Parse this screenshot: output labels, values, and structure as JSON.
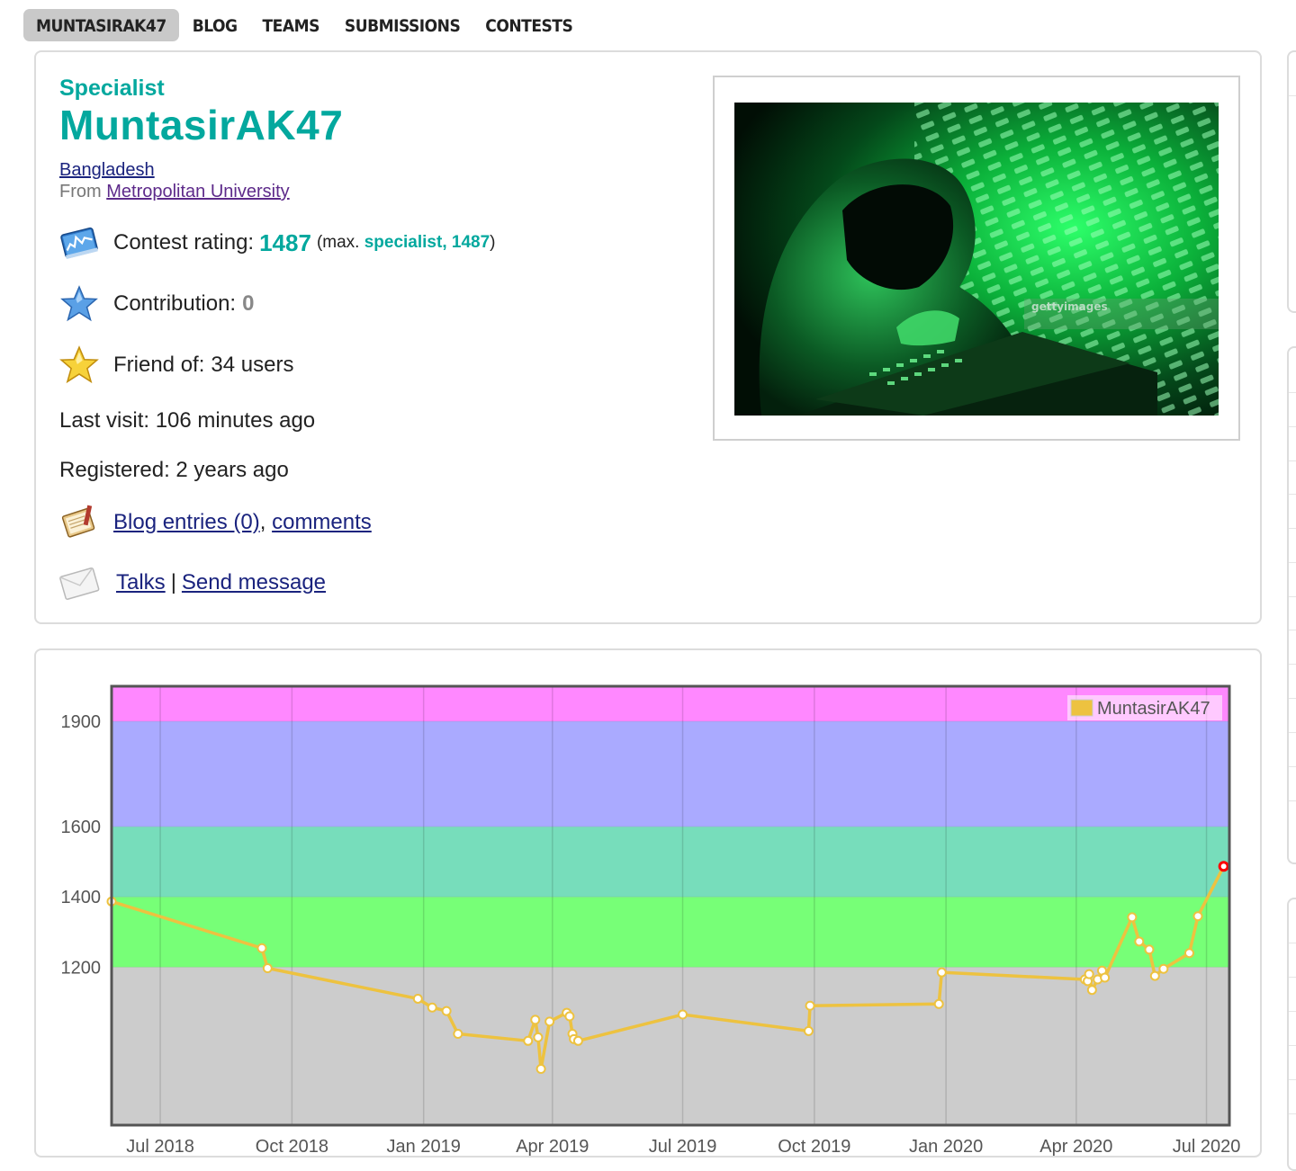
{
  "nav": {
    "tabs": [
      {
        "label": "MUNTASIRAK47",
        "active": true
      },
      {
        "label": "BLOG",
        "active": false
      },
      {
        "label": "TEAMS",
        "active": false
      },
      {
        "label": "SUBMISSIONS",
        "active": false
      },
      {
        "label": "CONTESTS",
        "active": false
      }
    ]
  },
  "profile": {
    "rank": "Specialist",
    "handle": "MuntasirAK47",
    "country": "Bangladesh",
    "from_label": "From",
    "organization": "Metropolitan University",
    "contest_rating_label": "Contest rating:",
    "contest_rating": "1487",
    "max_open": "(max.",
    "max_rank": "specialist,",
    "max_rating": "1487",
    "max_close": ")",
    "contribution_label": "Contribution:",
    "contribution": "0",
    "friend_label": "Friend of:",
    "friend_value": "34 users",
    "last_visit": "Last visit: 106 minutes ago",
    "registered": "Registered: 2 years ago",
    "blog_entries": "Blog entries (0)",
    "comments": "comments",
    "talks": "Talks",
    "separator": "|",
    "send_message": "Send message",
    "photo_watermark": "gettyimages",
    "colors": {
      "rank": "#03a89e",
      "link": "#1a237e"
    }
  },
  "chart_data": {
    "type": "line",
    "series": [
      {
        "name": "MuntasirAK47",
        "color": "#edc240",
        "points": [
          [
            "2018-05-28",
            1387
          ],
          [
            "2018-09-10",
            1254
          ],
          [
            "2018-09-14",
            1197
          ],
          [
            "2018-12-28",
            1110
          ],
          [
            "2019-01-07",
            1085
          ],
          [
            "2019-01-17",
            1075
          ],
          [
            "2019-01-25",
            1010
          ],
          [
            "2019-03-15",
            990
          ],
          [
            "2019-03-20",
            1050
          ],
          [
            "2019-03-22",
            1000
          ],
          [
            "2019-03-24",
            910
          ],
          [
            "2019-03-30",
            1045
          ],
          [
            "2019-04-11",
            1070
          ],
          [
            "2019-04-13",
            1060
          ],
          [
            "2019-04-15",
            1010
          ],
          [
            "2019-04-16",
            995
          ],
          [
            "2019-04-19",
            990
          ],
          [
            "2019-07-01",
            1065
          ],
          [
            "2019-09-27",
            1018
          ],
          [
            "2019-09-28",
            1090
          ],
          [
            "2019-12-27",
            1095
          ],
          [
            "2019-12-29",
            1185
          ],
          [
            "2020-04-07",
            1165
          ],
          [
            "2020-04-09",
            1160
          ],
          [
            "2020-04-10",
            1180
          ],
          [
            "2020-04-12",
            1135
          ],
          [
            "2020-04-16",
            1165
          ],
          [
            "2020-04-19",
            1190
          ],
          [
            "2020-04-21",
            1170
          ],
          [
            "2020-05-10",
            1342
          ],
          [
            "2020-05-15",
            1273
          ],
          [
            "2020-05-22",
            1250
          ],
          [
            "2020-05-26",
            1175
          ],
          [
            "2020-06-01",
            1195
          ],
          [
            "2020-06-19",
            1240
          ],
          [
            "2020-06-25",
            1345
          ],
          [
            "2020-07-13",
            1487
          ]
        ]
      }
    ],
    "x_ticks": [
      "Jul 2018",
      "Oct 2018",
      "Jan 2019",
      "Apr 2019",
      "Jul 2019",
      "Oct 2019",
      "Jan 2020",
      "Apr 2020",
      "Jul 2020"
    ],
    "x_tick_dates": [
      "2018-07-01",
      "2018-10-01",
      "2019-01-01",
      "2019-04-01",
      "2019-07-01",
      "2019-10-01",
      "2020-01-01",
      "2020-04-01",
      "2020-07-01"
    ],
    "y_ticks": [
      1200,
      1400,
      1600,
      1900
    ],
    "xlim": [
      "2018-05-28",
      "2020-07-17"
    ],
    "ylim": [
      750,
      2000
    ],
    "bands": [
      {
        "from": 0,
        "to": 1200,
        "color": "#cccccc"
      },
      {
        "from": 1200,
        "to": 1400,
        "color": "#77ff77"
      },
      {
        "from": 1400,
        "to": 1600,
        "color": "#77ddbb"
      },
      {
        "from": 1600,
        "to": 1900,
        "color": "#aaaaff"
      },
      {
        "from": 1900,
        "to": 2100,
        "color": "#ff88ff"
      }
    ],
    "legend": "top-right",
    "grid": true,
    "highlight_last_point_color": "#ff0000"
  }
}
